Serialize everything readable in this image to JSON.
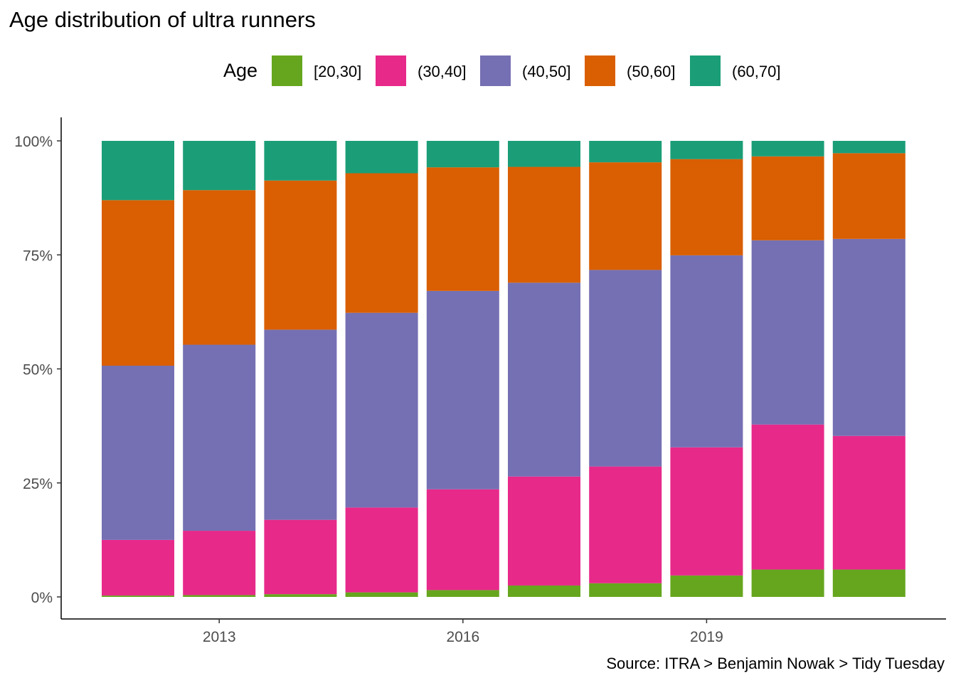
{
  "chart_data": {
    "type": "bar",
    "stacked": "percent",
    "title": "Age distribution of ultra runners",
    "caption": "Source: ITRA > Benjamin Nowak > Tidy Tuesday",
    "legend_title": "Age",
    "legend_position": "top",
    "grid": false,
    "x": [
      2012,
      2013,
      2014,
      2015,
      2016,
      2017,
      2018,
      2019,
      2020,
      2021
    ],
    "x_ticks": [
      "2013",
      "2016",
      "2019"
    ],
    "y_ticks": [
      "0%",
      "25%",
      "50%",
      "75%",
      "100%"
    ],
    "ylim": [
      0,
      100
    ],
    "series": [
      {
        "name": "[20,30]",
        "color": "#66A61E",
        "values": [
          0.3,
          0.4,
          0.6,
          1.0,
          1.5,
          2.5,
          3.0,
          4.7,
          6.0,
          6.0
        ]
      },
      {
        "name": "(30,40]",
        "color": "#E7298A",
        "values": [
          12.2,
          14.1,
          16.3,
          18.6,
          22.1,
          23.9,
          25.6,
          28.1,
          31.8,
          29.3
        ]
      },
      {
        "name": "(40,50]",
        "color": "#7570B3",
        "values": [
          38.2,
          40.8,
          41.7,
          42.7,
          43.5,
          42.5,
          43.1,
          42.1,
          40.4,
          43.2
        ]
      },
      {
        "name": "(50,60]",
        "color": "#D95F02",
        "values": [
          36.3,
          33.9,
          32.7,
          30.6,
          27.1,
          25.4,
          23.6,
          21.1,
          18.4,
          18.8
        ]
      },
      {
        "name": "(60,70]",
        "color": "#1B9E77",
        "values": [
          13.0,
          10.8,
          8.7,
          7.1,
          5.8,
          5.7,
          4.7,
          4.0,
          3.4,
          2.7
        ]
      }
    ]
  }
}
